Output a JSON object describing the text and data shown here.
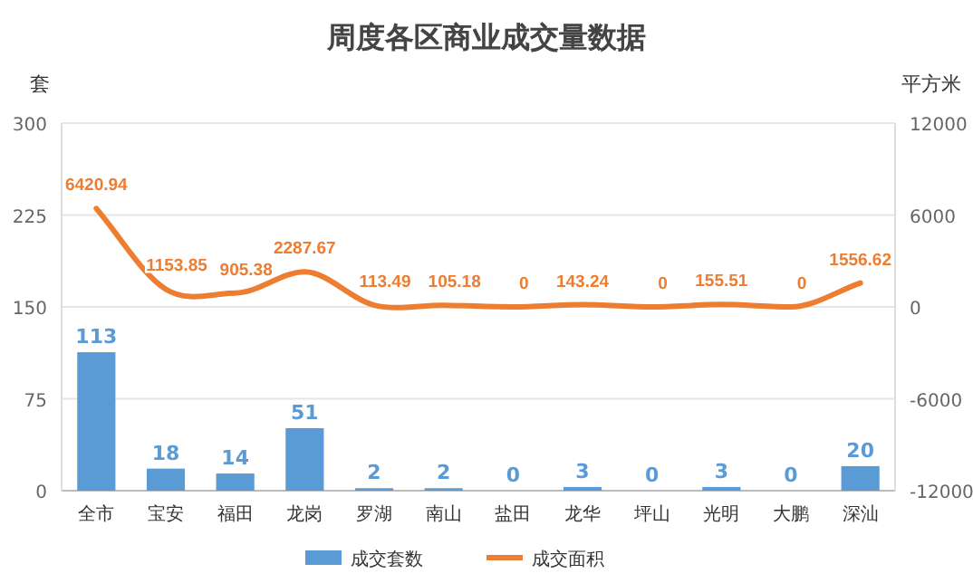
{
  "chart_data": {
    "type": "bar",
    "title": "周度各区商业成交量数据",
    "ylabel": "套",
    "y2label": "平方米",
    "categories": [
      "全市",
      "宝安",
      "福田",
      "龙岗",
      "罗湖",
      "南山",
      "盐田",
      "龙华",
      "坪山",
      "光明",
      "大鹏",
      "深汕"
    ],
    "series": [
      {
        "name": "成交套数",
        "color": "#5b9bd5",
        "values": [
          113,
          18,
          14,
          51,
          2,
          2,
          0,
          3,
          0,
          3,
          0,
          20
        ]
      },
      {
        "name": "成交面积",
        "type": "line",
        "axis": "y2",
        "color": "#ed7d31",
        "values": [
          6420.94,
          1153.85,
          905.38,
          2287.67,
          113.49,
          105.18,
          0,
          143.24,
          0,
          155.51,
          0,
          1556.62
        ]
      }
    ],
    "ylim": [
      0,
      300
    ],
    "yticks": [
      0,
      75,
      150,
      225,
      300
    ],
    "y2lim": [
      -12000,
      12000
    ],
    "y2ticks": [
      -12000,
      -6000,
      0,
      6000,
      12000
    ],
    "grid": "y",
    "legend": "bottom",
    "data_labels": true,
    "marker": "none"
  }
}
